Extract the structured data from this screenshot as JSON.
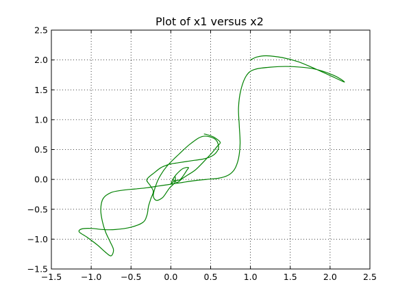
{
  "chart_data": {
    "type": "line",
    "title": "Plot of x1 versus x2",
    "xlabel": "",
    "ylabel": "",
    "xlim": [
      -1.5,
      2.5
    ],
    "ylim": [
      -1.5,
      2.5
    ],
    "x_ticks": [
      -1.5,
      -1.0,
      -0.5,
      0.0,
      0.5,
      1.0,
      1.5,
      2.0,
      2.5
    ],
    "y_ticks": [
      -1.5,
      -1.0,
      -0.5,
      0.0,
      0.5,
      1.0,
      1.5,
      2.0,
      2.5
    ],
    "x_tick_labels": [
      "−1.5",
      "−1.0",
      "−0.5",
      "0.0",
      "0.5",
      "1.0",
      "1.5",
      "2.0",
      "2.5"
    ],
    "y_tick_labels": [
      "−1.5",
      "−1.0",
      "−0.5",
      "0.0",
      "0.5",
      "1.0",
      "1.5",
      "2.0",
      "2.5"
    ],
    "grid": true,
    "legend": "none",
    "colors": {
      "series": "#008000"
    },
    "series": [
      {
        "x": [
          1.0,
          1.08,
          1.2,
          1.4,
          1.6,
          1.8,
          2.0,
          2.18,
          2.05,
          1.8,
          1.5,
          1.25,
          1.05,
          0.95,
          0.88,
          0.85,
          0.86,
          0.87,
          0.85,
          0.8,
          0.72,
          0.6,
          0.45,
          0.3,
          0.15,
          0.0,
          -0.15,
          -0.3,
          -0.45,
          -0.6,
          -0.75,
          -0.85,
          -0.88,
          -0.86,
          -0.82,
          -0.76,
          -0.72,
          -0.75,
          -0.82,
          -0.92,
          -1.05,
          -1.15,
          -1.12,
          -1.0,
          -0.85,
          -0.7,
          -0.5,
          -0.35,
          -0.3,
          -0.28,
          -0.25,
          -0.22,
          -0.26,
          -0.3,
          -0.2,
          -0.12,
          -0.05,
          0.0,
          0.1,
          0.2,
          0.3,
          0.4,
          0.5,
          0.57,
          0.6,
          0.55,
          0.4,
          0.25,
          0.1,
          -0.05,
          -0.15,
          -0.2,
          -0.22,
          -0.18,
          -0.1,
          -0.02,
          0.05,
          0.05,
          0.0,
          0.05,
          0.12,
          0.2,
          0.22,
          0.15,
          0.08,
          0.05,
          0.03,
          0.08,
          0.15,
          0.22,
          0.3,
          0.38,
          0.45,
          0.52,
          0.58,
          0.62,
          0.55,
          0.48,
          0.42
        ],
        "y": [
          2.0,
          2.05,
          2.07,
          2.04,
          1.97,
          1.86,
          1.74,
          1.63,
          1.74,
          1.85,
          1.89,
          1.88,
          1.84,
          1.74,
          1.5,
          1.2,
          0.9,
          0.6,
          0.35,
          0.17,
          0.07,
          0.02,
          0.0,
          -0.02,
          -0.05,
          -0.08,
          -0.11,
          -0.14,
          -0.16,
          -0.18,
          -0.22,
          -0.32,
          -0.5,
          -0.7,
          -0.88,
          -1.05,
          -1.18,
          -1.28,
          -1.22,
          -1.1,
          -0.97,
          -0.88,
          -0.83,
          -0.82,
          -0.84,
          -0.84,
          -0.8,
          -0.72,
          -0.6,
          -0.45,
          -0.32,
          -0.2,
          -0.1,
          0.0,
          0.12,
          0.2,
          0.24,
          0.26,
          0.28,
          0.3,
          0.32,
          0.34,
          0.38,
          0.45,
          0.55,
          0.68,
          0.72,
          0.6,
          0.42,
          0.22,
          0.02,
          -0.15,
          -0.28,
          -0.35,
          -0.3,
          -0.15,
          -0.05,
          0.05,
          -0.08,
          -0.02,
          0.0,
          0.15,
          0.2,
          0.18,
          0.1,
          0.05,
          0.0,
          -0.05,
          0.02,
          0.08,
          0.15,
          0.25,
          0.35,
          0.45,
          0.55,
          0.62,
          0.7,
          0.74,
          0.76
        ]
      }
    ]
  }
}
